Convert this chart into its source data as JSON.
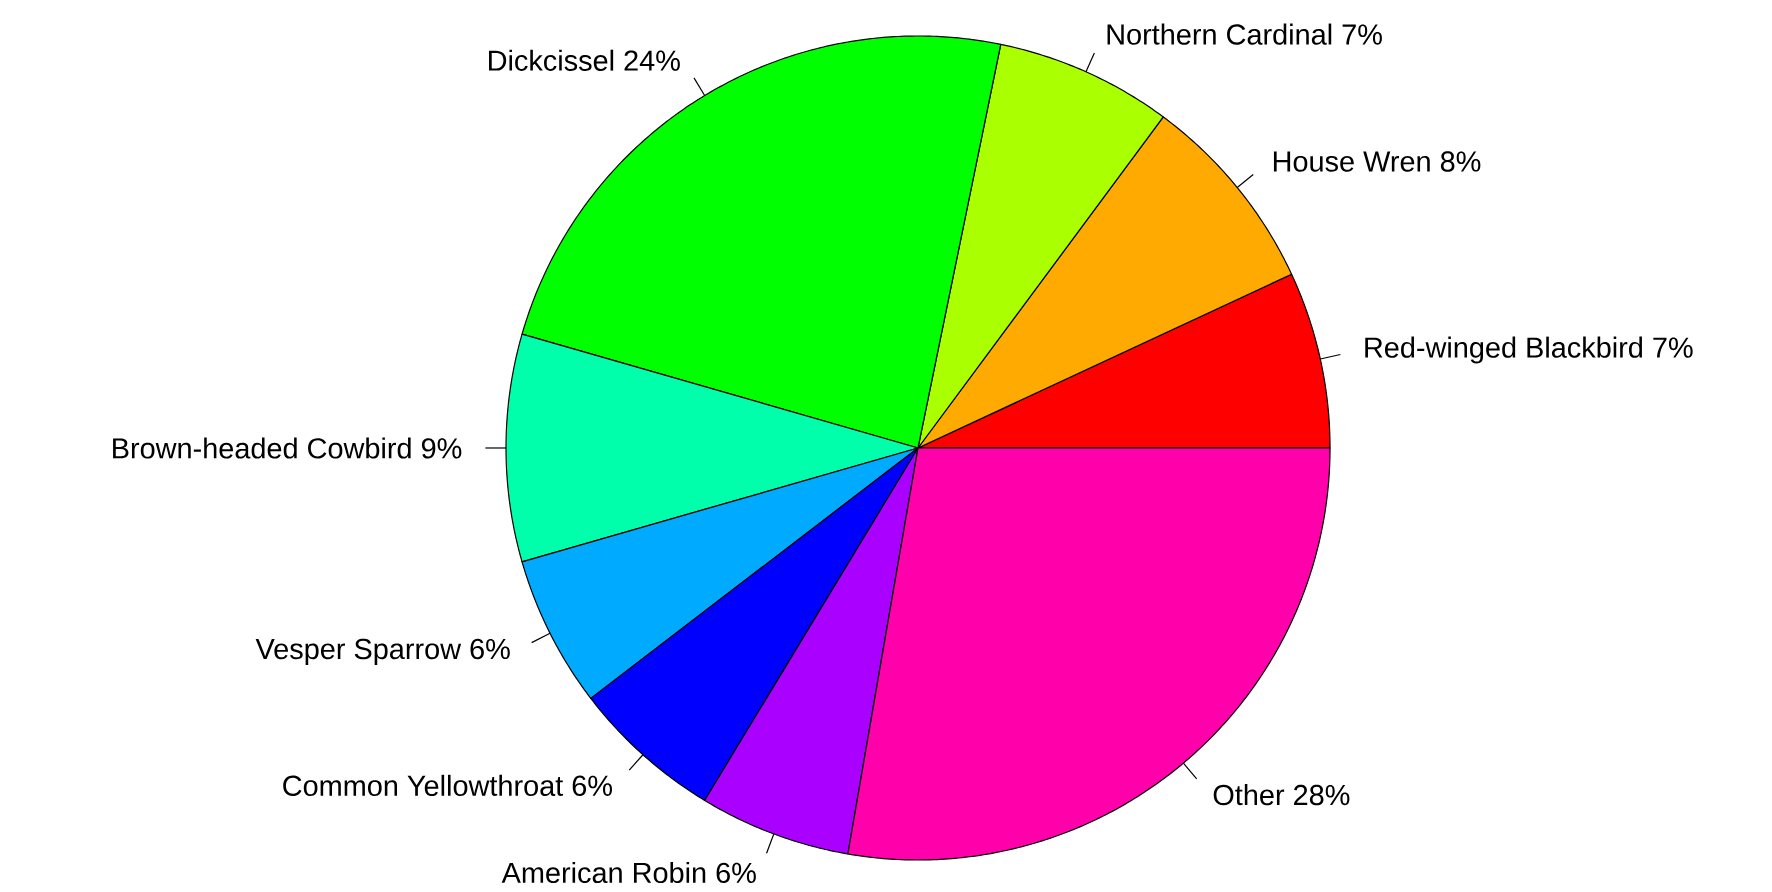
{
  "chart_data": {
    "type": "pie",
    "categories": [
      "Red-winged Blackbird 7%",
      "House Wren 8%",
      "Northern Cardinal 7%",
      "Dickcissel 24%",
      "Brown-headed Cowbird 9%",
      "Vesper Sparrow 6%",
      "Common Yellowthroat 6%",
      "American Robin 6%",
      "Other 28%"
    ],
    "values": [
      7,
      8,
      7,
      24,
      9,
      6,
      6,
      6,
      28
    ],
    "colors": [
      "#ff0000",
      "#ffaa00",
      "#aaff00",
      "#00ff00",
      "#00ffaa",
      "#00aaff",
      "#0000ff",
      "#aa00ff",
      "#ff00aa"
    ]
  }
}
